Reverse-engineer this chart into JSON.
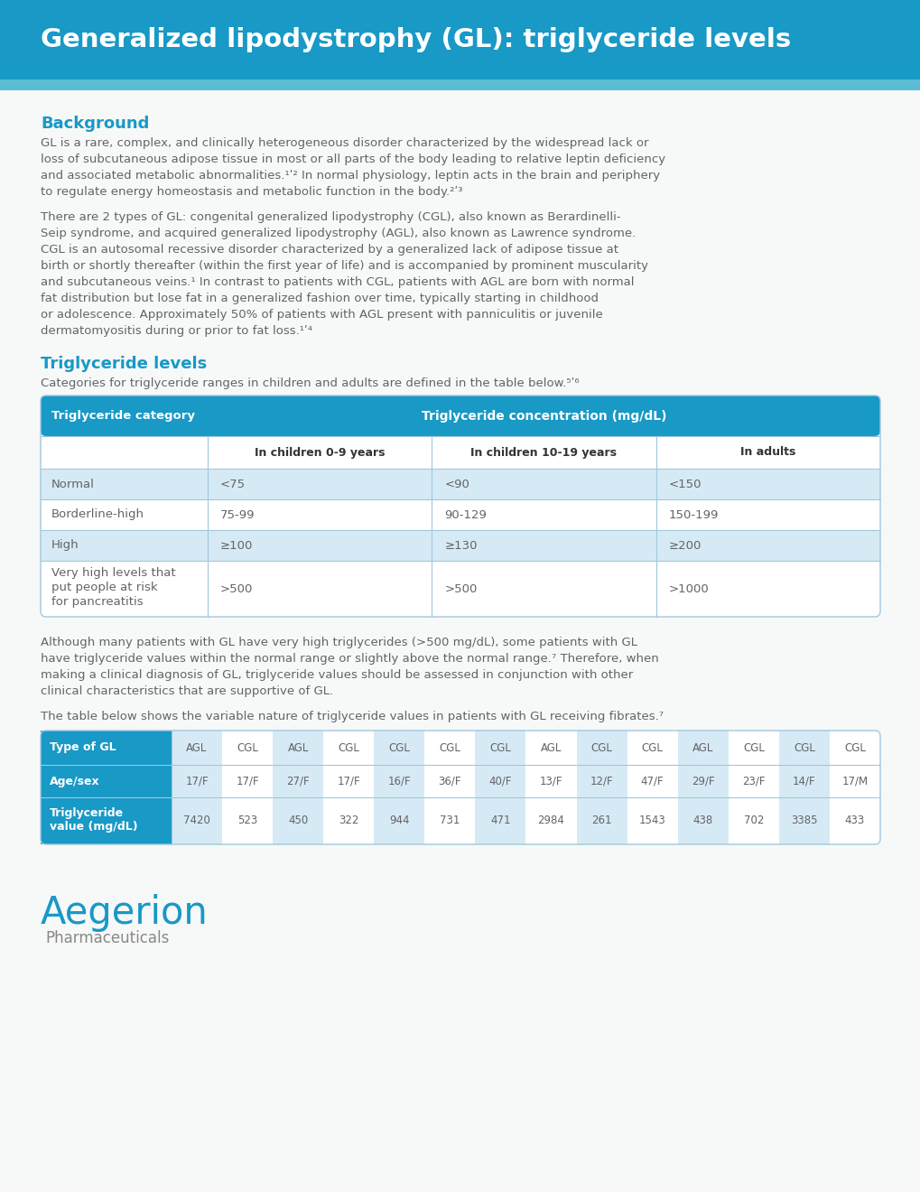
{
  "title": "Generalized lipodystrophy (GL): triglyceride levels",
  "title_bg_color": "#1899c6",
  "title_strip_color": "#5bbdd4",
  "title_text_color": "#ffffff",
  "bg_color": "#f7f8f8",
  "section1_heading": "Background",
  "section1_heading_color": "#1899c6",
  "section1_para1_lines": [
    "GL is a rare, complex, and clinically heterogeneous disorder characterized by the widespread lack or",
    "loss of subcutaneous adipose tissue in most or all parts of the body leading to relative leptin deficiency",
    "and associated metabolic abnormalities.¹ʹ² In normal physiology, leptin acts in the brain and periphery",
    "to regulate energy homeostasis and metabolic function in the body.²ʹ³"
  ],
  "section1_para2_lines": [
    "There are 2 types of GL: congenital generalized lipodystrophy (CGL), also known as Berardinelli-",
    "Seip syndrome, and acquired generalized lipodystrophy (AGL), also known as Lawrence syndrome.",
    "CGL is an autosomal recessive disorder characterized by a generalized lack of adipose tissue at",
    "birth or shortly thereafter (within the first year of life) and is accompanied by prominent muscularity",
    "and subcutaneous veins.¹ In contrast to patients with CGL, patients with AGL are born with normal",
    "fat distribution but lose fat in a generalized fashion over time, typically starting in childhood",
    "or adolescence. Approximately 50% of patients with AGL present with panniculitis or juvenile",
    "dermatomyositis during or prior to fat loss.¹ʹ⁴"
  ],
  "section2_heading": "Triglyceride levels",
  "section2_heading_color": "#1899c6",
  "section2_intro": "Categories for triglyceride ranges in children and adults are defined in the table below.⁵ʹ⁶",
  "table1_header_bg": "#1899c6",
  "table1_header_text": "#ffffff",
  "table1_row_alt_bg": "#d6eaf5",
  "table1_row_white_bg": "#ffffff",
  "table1_border_color": "#a0c8dd",
  "table1_col1_header": "Triglyceride category",
  "table1_col2_header": "Triglyceride concentration (mg/dL)",
  "table1_subcol_headers": [
    "In children 0-9 years",
    "In children 10-19 years",
    "In adults"
  ],
  "table1_rows": [
    [
      "Normal",
      "<75",
      "<90",
      "<150"
    ],
    [
      "Borderline-high",
      "75-99",
      "90-129",
      "150-199"
    ],
    [
      "High",
      "≥100",
      "≥130",
      "≥200"
    ],
    [
      "Very high levels that\nput people at risk\nfor pancreatitis",
      ">500",
      ">500",
      ">1000"
    ]
  ],
  "para_after_table1_lines": [
    "Although many patients with GL have very high triglycerides (>500 mg/dL), some patients with GL",
    "have triglyceride values within the normal range or slightly above the normal range.⁷ Therefore, when",
    "making a clinical diagnosis of GL, triglyceride values should be assessed in conjunction with other",
    "clinical characteristics that are supportive of GL."
  ],
  "para_before_table2": "The table below shows the variable nature of triglyceride values in patients with GL receiving fibrates.⁷",
  "table2_header_bg": "#1899c6",
  "table2_header_text": "#ffffff",
  "table2_row_alt_bg": "#d6eaf5",
  "table2_row_white_bg": "#ffffff",
  "table2_row1_label": "Type of GL",
  "table2_row2_label": "Age/sex",
  "table2_row3_label": "Triglyceride\nvalue (mg/dL)",
  "table2_type_gl": [
    "AGL",
    "CGL",
    "AGL",
    "CGL",
    "CGL",
    "CGL",
    "CGL",
    "AGL",
    "CGL",
    "CGL",
    "AGL",
    "CGL",
    "CGL",
    "CGL"
  ],
  "table2_age_sex": [
    "17/F",
    "17/F",
    "27/F",
    "17/F",
    "16/F",
    "36/F",
    "40/F",
    "13/F",
    "12/F",
    "47/F",
    "29/F",
    "23/F",
    "14/F",
    "17/M"
  ],
  "table2_trig": [
    "7420",
    "523",
    "450",
    "322",
    "944",
    "731",
    "471",
    "2984",
    "261",
    "1543",
    "438",
    "702",
    "3385",
    "433"
  ],
  "body_text_color": "#636466",
  "logo_text_large": "Aegerion®",
  "logo_text_small": "Pharmaceuticals",
  "logo_color": "#1899c6",
  "logo_small_color": "#888888"
}
